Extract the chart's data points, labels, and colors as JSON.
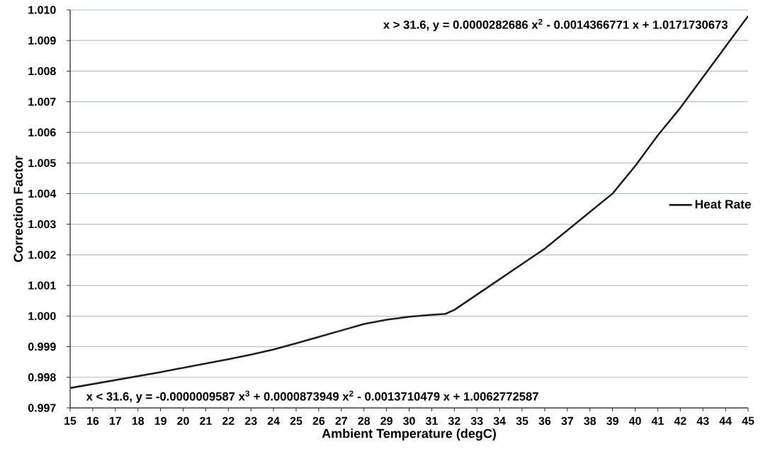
{
  "chart_data": {
    "type": "line",
    "xlabel": "Ambient Temperature (degC)",
    "ylabel": "Correction Factor",
    "annotations": [
      "x > 31.6, y = 0.0000282686 x$^{2}$ - 0.0014366771 x + 1.0171730673",
      "x < 31.6, y = -0.0000009587 x$^{3}$ + 0.0000873949 x$^{2}$ - 0.0013710479 x + 1.0062772587"
    ],
    "x": [
      15,
      16,
      17,
      18,
      19,
      20,
      21,
      22,
      23,
      24,
      25,
      26,
      27,
      28,
      29,
      30,
      31,
      31.6,
      32,
      33,
      34,
      35,
      36,
      37,
      38,
      39,
      40,
      41,
      42,
      43,
      44,
      45
    ],
    "series": [
      {
        "name": "Heat Rate",
        "color": "#1f1f1f",
        "values": [
          0.99765,
          0.99778,
          0.99791,
          0.99804,
          0.99817,
          0.99831,
          0.99845,
          0.99859,
          0.99874,
          0.99891,
          0.99911,
          0.99932,
          0.99953,
          0.99974,
          0.99988,
          0.99998,
          1.00004,
          1.00007,
          1.0002,
          1.0007,
          1.0012,
          1.0017,
          1.0022,
          1.0028,
          1.0034,
          1.004,
          1.0049,
          1.0059,
          1.0068,
          1.0078,
          1.0088,
          1.0098
        ]
      }
    ],
    "xlim": [
      15,
      45
    ],
    "ylim": [
      0.997,
      1.01
    ],
    "xticks": [
      15,
      16,
      17,
      18,
      19,
      20,
      21,
      22,
      23,
      24,
      25,
      26,
      27,
      28,
      29,
      30,
      31,
      32,
      33,
      34,
      35,
      36,
      37,
      38,
      39,
      40,
      41,
      42,
      43,
      44,
      45
    ],
    "yticks": [
      {
        "value": 0.997,
        "label": "0.997"
      },
      {
        "value": 0.998,
        "label": "0.998"
      },
      {
        "value": 0.999,
        "label": "0.999"
      },
      {
        "value": 1.0,
        "label": "1.000"
      },
      {
        "value": 1.001,
        "label": "1.001"
      },
      {
        "value": 1.002,
        "label": "1.002"
      },
      {
        "value": 1.003,
        "label": "1.003"
      },
      {
        "value": 1.004,
        "label": "1.004"
      },
      {
        "value": 1.005,
        "label": "1.005"
      },
      {
        "value": 1.006,
        "label": "1.006"
      },
      {
        "value": 1.007,
        "label": "1.007"
      },
      {
        "value": 1.008,
        "label": "1.008"
      },
      {
        "value": 1.009,
        "label": "1.009"
      },
      {
        "value": 1.01,
        "label": "1.010"
      }
    ],
    "grid": "y",
    "legend": "right"
  }
}
